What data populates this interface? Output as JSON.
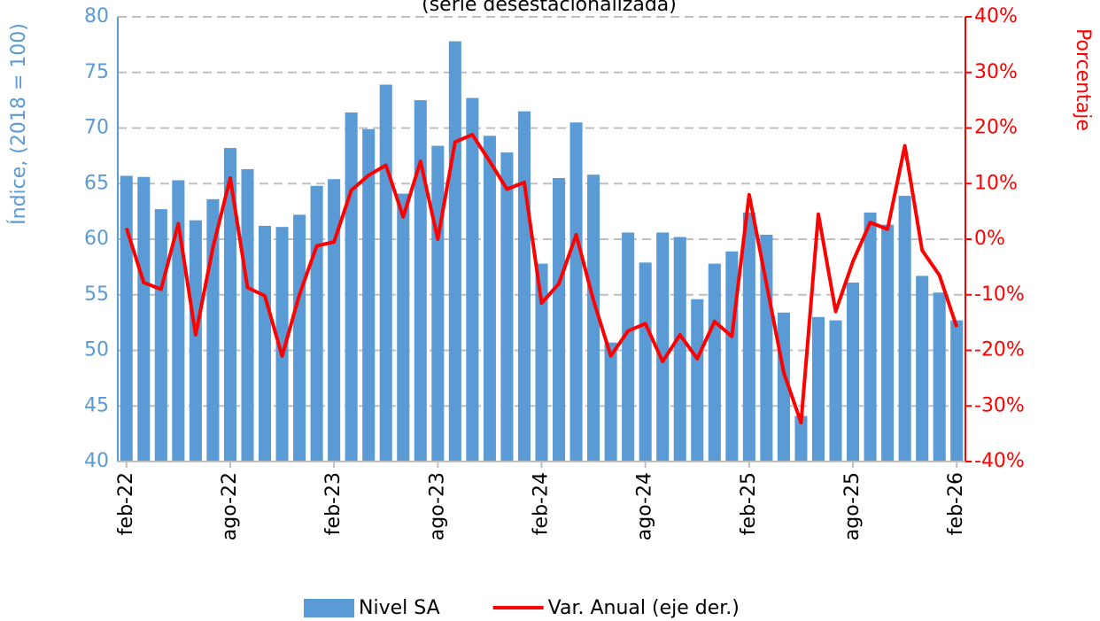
{
  "chart_data": {
    "type": "bar_line",
    "subtitle": "(serie desestacionalizada)",
    "y_label": "Índice, (2018 = 100)",
    "y2_label": "Porcentaje",
    "categories": [
      "feb-22",
      null,
      null,
      null,
      null,
      null,
      "ago-22",
      null,
      null,
      null,
      null,
      null,
      "feb-23",
      null,
      null,
      null,
      null,
      null,
      "ago-23",
      null,
      null,
      null,
      null,
      null,
      "feb-24",
      null,
      null,
      null,
      null,
      null,
      "ago-24",
      null,
      null,
      null,
      null,
      null,
      "feb-25",
      null,
      null,
      null,
      null,
      null,
      "ago-25",
      null,
      null,
      null,
      null,
      null,
      "feb-26"
    ],
    "series": [
      {
        "name": "Nivel SA",
        "type": "bar",
        "color": "#5b9bd5",
        "values": [
          65.7,
          65.6,
          62.7,
          65.3,
          61.7,
          63.6,
          68.2,
          66.3,
          61.2,
          61.1,
          62.2,
          64.8,
          65.4,
          71.4,
          69.9,
          73.9,
          64.1,
          72.5,
          68.4,
          77.8,
          72.7,
          69.3,
          67.8,
          71.5,
          57.8,
          65.5,
          70.5,
          65.8,
          50.7,
          60.6,
          57.9,
          60.6,
          60.2,
          54.6,
          57.8,
          58.9,
          62.4,
          60.4,
          53.4,
          44.1,
          53.0,
          52.7,
          56.1,
          62.4,
          61.3,
          63.9,
          56.7,
          55.2,
          52.7
        ]
      },
      {
        "name": "Var. Anual (eje der.)",
        "type": "line",
        "color": "#ff0000",
        "axis": "y2",
        "values": [
          2,
          -7.8,
          -9.0,
          2.8,
          -17.2,
          -1.5,
          11,
          -8.7,
          -10.2,
          -21,
          -10,
          -1.2,
          -0.5,
          8.8,
          11.5,
          13.3,
          4,
          14,
          0,
          17.5,
          18.8,
          14,
          9,
          10.2,
          -11.5,
          -8,
          0.8,
          -11,
          -21,
          -16.5,
          -15.2,
          -22,
          -17.2,
          -21.5,
          -14.8,
          -17.5,
          8,
          -8,
          -24,
          -33,
          4.5,
          -13,
          -4,
          3,
          1.8,
          16.8,
          -2,
          -6.5,
          -15.8
        ]
      }
    ],
    "ylim": [
      40,
      80
    ],
    "yticks": [
      40,
      45,
      50,
      55,
      60,
      65,
      70,
      75,
      80
    ],
    "y2lim": [
      -40,
      40
    ],
    "y2ticks": [
      {
        "value": -40,
        "label": "-40%"
      },
      {
        "value": -30,
        "label": "-30%"
      },
      {
        "value": -20,
        "label": "-20%"
      },
      {
        "value": -10,
        "label": "-10%"
      },
      {
        "value": 0,
        "label": "0%"
      },
      {
        "value": 10,
        "label": "10%"
      },
      {
        "value": 20,
        "label": "20%"
      },
      {
        "value": 30,
        "label": "30%"
      },
      {
        "value": 40,
        "label": "40%"
      }
    ],
    "grid": true
  }
}
